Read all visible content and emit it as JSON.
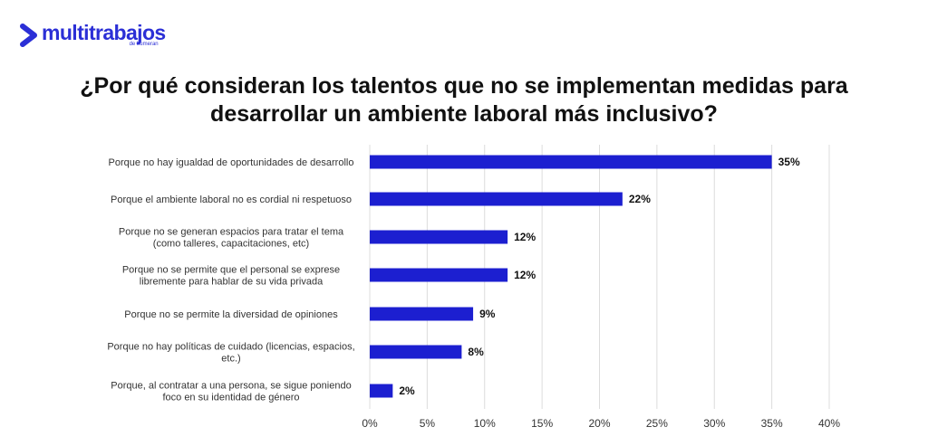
{
  "brand": {
    "name": "multitrabajos",
    "tagline": "de bumeran",
    "color": "#2b2fd6"
  },
  "header": {
    "title_line1": "¿Por qué consideran los talentos que no se implementan medidas para",
    "title_line2": "desarrollar un ambiente laboral más inclusivo?"
  },
  "chart_data": {
    "type": "bar",
    "orientation": "horizontal",
    "title": "¿Por qué consideran los talentos que no se implementan medidas para desarrollar un ambiente laboral más inclusivo?",
    "categories": [
      [
        "Porque no hay igualdad de oportunidades de desarrollo"
      ],
      [
        "Porque el ambiente laboral no es cordial ni respetuoso"
      ],
      [
        "Porque no se generan espacios para tratar el tema",
        "(como talleres, capacitaciones, etc)"
      ],
      [
        "Porque no se permite que el personal se exprese",
        "libremente para hablar de su vida privada"
      ],
      [
        "Porque no se permite la diversidad de opiniones"
      ],
      [
        "Porque no hay políticas de cuidado (licencias, espacios,",
        "etc.)"
      ],
      [
        "Porque, al contratar a una persona, se sigue poniendo",
        "foco en su identidad de género"
      ]
    ],
    "values": [
      35,
      22,
      12,
      12,
      9,
      8,
      2
    ],
    "value_labels": [
      "35%",
      "22%",
      "12%",
      "12%",
      "9%",
      "8%",
      "2%"
    ],
    "xlim": [
      0,
      40
    ],
    "x_ticks": [
      0,
      5,
      10,
      15,
      20,
      25,
      30,
      35,
      40
    ],
    "x_tick_labels": [
      "0%",
      "5%",
      "10%",
      "15%",
      "20%",
      "25%",
      "30%",
      "35%",
      "40%"
    ],
    "grid": true,
    "bar_color": "#1c1fd0",
    "grid_color": "#dcdcdc"
  }
}
